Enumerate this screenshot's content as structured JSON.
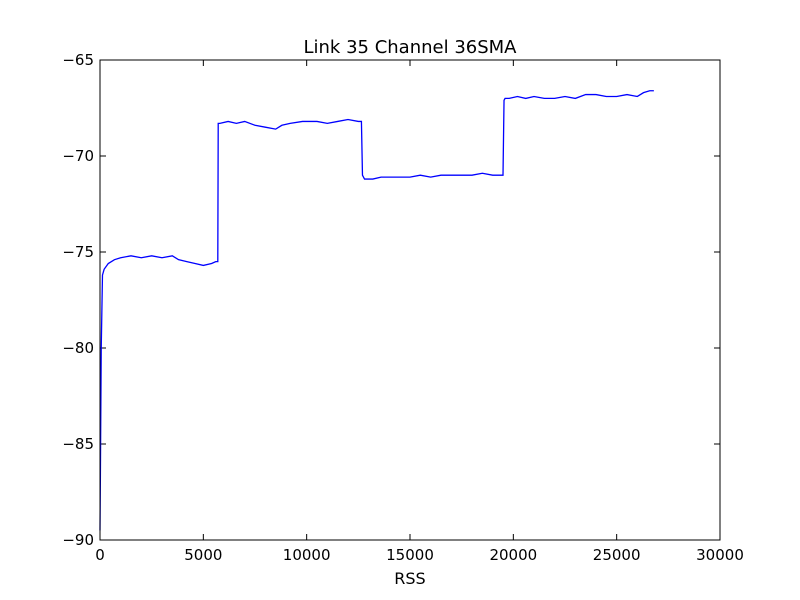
{
  "chart_data": {
    "type": "line",
    "title": "Link 35 Channel 36SMA",
    "xlabel": "RSS",
    "ylabel": "",
    "xlim": [
      0,
      30000
    ],
    "ylim": [
      -90,
      -65
    ],
    "x_ticks": [
      0,
      5000,
      10000,
      15000,
      20000,
      25000,
      30000
    ],
    "x_tick_labels": [
      "0",
      "5000",
      "10000",
      "15000",
      "20000",
      "25000",
      "30000"
    ],
    "y_ticks": [
      -90,
      -85,
      -80,
      -75,
      -70,
      -65
    ],
    "y_tick_labels": [
      "−90",
      "−85",
      "−80",
      "−75",
      "−70",
      "−65"
    ],
    "grid": false,
    "line_color": "#0000ff",
    "series": [
      {
        "x": [
          0,
          20,
          60,
          120,
          200,
          400,
          700,
          1000,
          1500,
          2000,
          2500,
          3000,
          3500,
          3800,
          4200,
          4600,
          5000,
          5400,
          5600,
          5700,
          5720,
          5800,
          6200,
          6600,
          7000,
          7500,
          8000,
          8500,
          8800,
          9200,
          9800,
          10500,
          11000,
          11500,
          12000,
          12500,
          12650,
          12700,
          12800,
          13200,
          13600,
          14000,
          14500,
          15000,
          15500,
          16000,
          16500,
          17000,
          17500,
          18000,
          18500,
          19000,
          19500,
          19550,
          19600,
          19800,
          20200,
          20600,
          21000,
          21500,
          22000,
          22500,
          23000,
          23500,
          24000,
          24500,
          25000,
          25500,
          26000,
          26300,
          26600,
          26800
        ],
        "y": [
          -89.5,
          -86.5,
          -80.0,
          -76.2,
          -75.9,
          -75.6,
          -75.4,
          -75.3,
          -75.2,
          -75.3,
          -75.2,
          -75.3,
          -75.2,
          -75.4,
          -75.5,
          -75.6,
          -75.7,
          -75.6,
          -75.5,
          -75.5,
          -68.3,
          -68.3,
          -68.2,
          -68.3,
          -68.2,
          -68.4,
          -68.5,
          -68.6,
          -68.4,
          -68.3,
          -68.2,
          -68.2,
          -68.3,
          -68.2,
          -68.1,
          -68.2,
          -68.2,
          -71.0,
          -71.2,
          -71.2,
          -71.1,
          -71.1,
          -71.1,
          -71.1,
          -71.0,
          -71.1,
          -71.0,
          -71.0,
          -71.0,
          -71.0,
          -70.9,
          -71.0,
          -71.0,
          -67.1,
          -67.0,
          -67.0,
          -66.9,
          -67.0,
          -66.9,
          -67.0,
          -67.0,
          -66.9,
          -67.0,
          -66.8,
          -66.8,
          -66.9,
          -66.9,
          -66.8,
          -66.9,
          -66.7,
          -66.6,
          -66.6
        ]
      }
    ]
  }
}
